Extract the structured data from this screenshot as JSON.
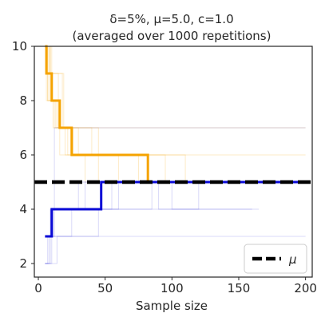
{
  "chart_data": {
    "type": "line",
    "title_line1": "δ=5%, μ=5.0, c=1.0",
    "title_line2": "(averaged over 1000 repetitions)",
    "xlabel": "Sample size",
    "ylabel": "",
    "xlim": [
      -3,
      205
    ],
    "ylim": [
      1.5,
      10
    ],
    "xticks": [
      0,
      50,
      100,
      150,
      200
    ],
    "yticks": [
      2,
      4,
      6,
      8,
      10
    ],
    "grid": false,
    "legend": {
      "entries": [
        {
          "label": "μ"
        }
      ],
      "position": "lower-right"
    },
    "mu": 5.0,
    "colors": {
      "upper": "#f5a300",
      "lower": "#0a0ad6",
      "mu": "#000000",
      "axis": "#262626"
    },
    "series": [
      {
        "name": "",
        "role": "upper-average",
        "x": [
          5,
          6,
          6,
          10,
          10,
          16,
          16,
          25,
          25,
          82,
          82,
          200
        ],
        "y": [
          10,
          10,
          9,
          9,
          8,
          8,
          7,
          7,
          6,
          6,
          5,
          5
        ]
      },
      {
        "name": "",
        "role": "lower-average",
        "x": [
          5,
          10,
          10,
          47,
          47,
          81,
          81,
          200
        ],
        "y": [
          3,
          3,
          4,
          4,
          5,
          5,
          5,
          5
        ]
      }
    ],
    "repetition_traces": {
      "upper": [
        {
          "x": [
            5,
            9,
            9,
            14,
            14,
            27,
            27,
            200
          ],
          "y": [
            10,
            10,
            8,
            8,
            7,
            7,
            7,
            7
          ]
        },
        {
          "x": [
            5,
            7,
            7,
            12,
            12,
            20,
            20,
            200
          ],
          "y": [
            10,
            10,
            8,
            8,
            7,
            7,
            6,
            6
          ]
        },
        {
          "x": [
            5,
            8,
            8,
            15,
            15,
            40,
            40,
            95,
            95,
            120
          ],
          "y": [
            10,
            10,
            9,
            9,
            7,
            7,
            6,
            6,
            5,
            5
          ]
        },
        {
          "x": [
            5,
            6,
            6,
            11,
            11,
            22,
            22,
            60,
            60,
            160
          ],
          "y": [
            10,
            10,
            8,
            8,
            7,
            7,
            6,
            6,
            5,
            5
          ]
        },
        {
          "x": [
            5,
            10,
            10,
            18,
            18,
            30,
            30,
            75,
            75,
            140
          ],
          "y": [
            10,
            10,
            9,
            9,
            7,
            7,
            6,
            6,
            5,
            5
          ]
        },
        {
          "x": [
            5,
            7,
            7,
            13,
            13,
            26,
            26,
            110,
            110,
            170
          ],
          "y": [
            10,
            10,
            8,
            8,
            7,
            7,
            6,
            6,
            5,
            5
          ]
        },
        {
          "x": [
            5,
            8,
            8,
            16,
            16,
            35,
            35,
            130
          ],
          "y": [
            10,
            10,
            8,
            8,
            6,
            6,
            5,
            5
          ]
        },
        {
          "x": [
            5,
            9,
            9,
            19,
            19,
            45,
            45,
            150
          ],
          "y": [
            10,
            10,
            9,
            9,
            7,
            7,
            5,
            5
          ]
        }
      ],
      "lower": [
        {
          "x": [
            5,
            8,
            8,
            20,
            20,
            200
          ],
          "y": [
            2,
            2,
            3,
            3,
            3,
            3
          ]
        },
        {
          "x": [
            5,
            9,
            9,
            12,
            12,
            200
          ],
          "y": [
            2,
            2,
            4,
            4,
            7,
            7
          ]
        },
        {
          "x": [
            5,
            11,
            11,
            30,
            30,
            90,
            90,
            165
          ],
          "y": [
            3,
            3,
            4,
            4,
            5,
            5,
            4,
            4
          ]
        },
        {
          "x": [
            5,
            7,
            7,
            25,
            25,
            60,
            60,
            150
          ],
          "y": [
            2,
            2,
            3,
            3,
            4,
            4,
            5,
            5
          ]
        },
        {
          "x": [
            5,
            12,
            12,
            40,
            40,
            120,
            120,
            170
          ],
          "y": [
            3,
            3,
            4,
            4,
            4,
            4,
            5,
            5
          ]
        },
        {
          "x": [
            5,
            10,
            10,
            35,
            35,
            70,
            70,
            130
          ],
          "y": [
            2,
            2,
            4,
            4,
            5,
            5,
            5,
            5
          ]
        },
        {
          "x": [
            5,
            9,
            9,
            55,
            55,
            100,
            100,
            160
          ],
          "y": [
            3,
            3,
            4,
            4,
            5,
            5,
            4,
            4
          ]
        },
        {
          "x": [
            5,
            14,
            14,
            45,
            45,
            85,
            85,
            145
          ],
          "y": [
            2,
            2,
            3,
            3,
            4,
            4,
            5,
            5
          ]
        }
      ]
    }
  }
}
